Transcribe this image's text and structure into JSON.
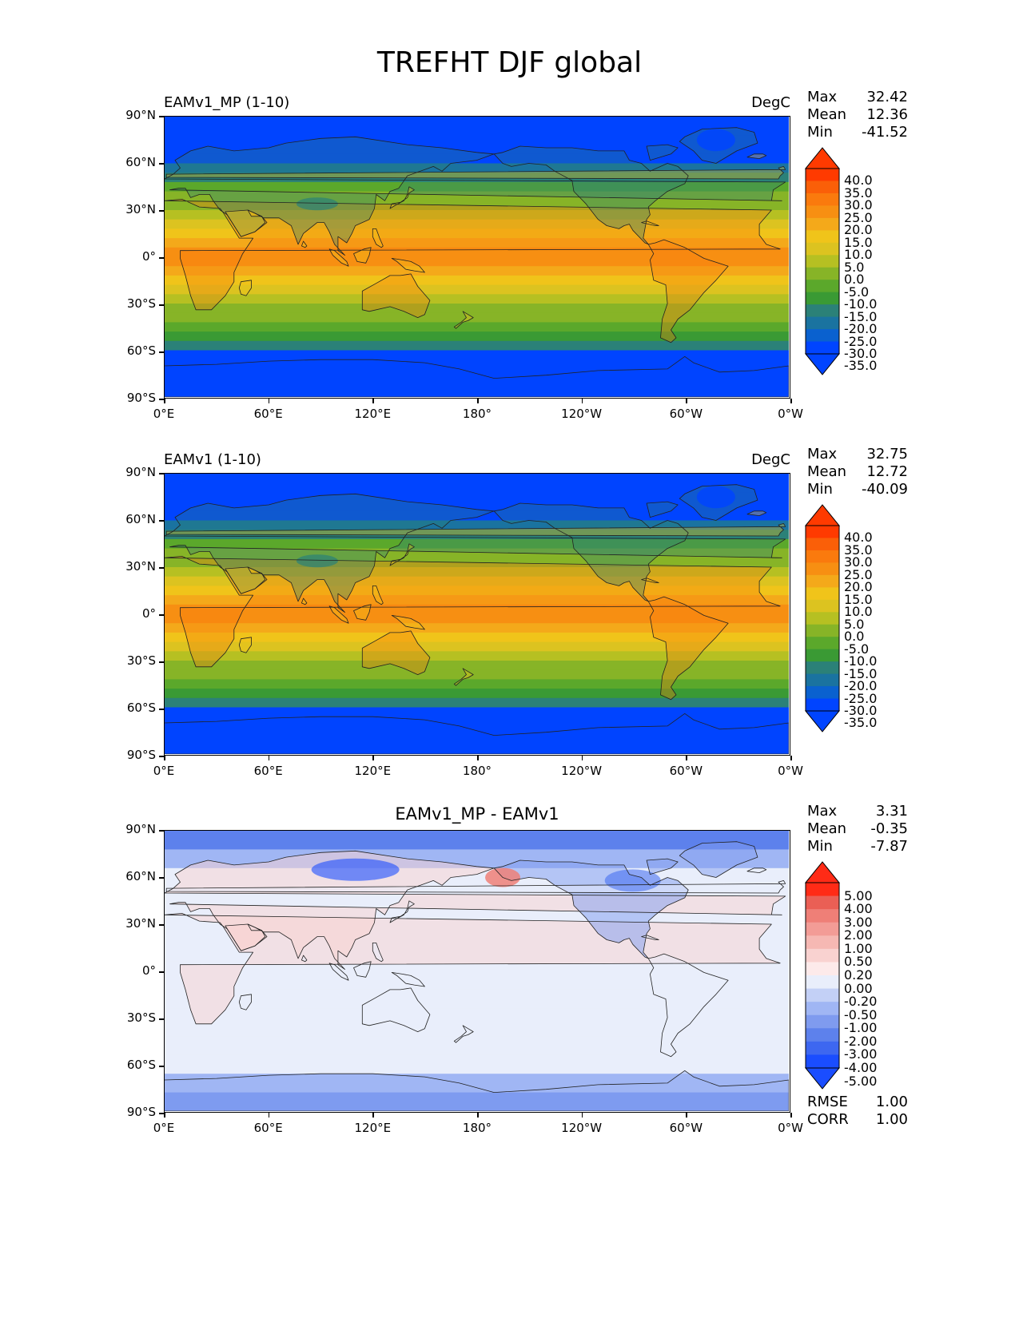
{
  "figure_title": "TREFHT DJF global",
  "x_ticks": [
    "0°E",
    "60°E",
    "120°E",
    "180°",
    "120°W",
    "60°W",
    "0°W"
  ],
  "y_ticks": [
    "90°N",
    "60°N",
    "30°N",
    "0°",
    "30°S",
    "60°S",
    "90°S"
  ],
  "panels": [
    {
      "title": "EAMv1_MP (1-10)",
      "units": "DegC",
      "stats": {
        "max_label": "Max",
        "max": "32.42",
        "mean_label": "Mean",
        "mean": "12.36",
        "min_label": "Min",
        "min": "-41.52"
      },
      "colorbar_labels": [
        "40.0",
        "35.0",
        "30.0",
        "25.0",
        "20.0",
        "15.0",
        "10.0",
        "5.0",
        "0.0",
        "-5.0",
        "-10.0",
        "-15.0",
        "-20.0",
        "-25.0",
        "-30.0",
        "-35.0"
      ]
    },
    {
      "title": "EAMv1 (1-10)",
      "units": "DegC",
      "stats": {
        "max_label": "Max",
        "max": "32.75",
        "mean_label": "Mean",
        "mean": "12.72",
        "min_label": "Min",
        "min": "-40.09"
      },
      "colorbar_labels": [
        "40.0",
        "35.0",
        "30.0",
        "25.0",
        "20.0",
        "15.0",
        "10.0",
        "5.0",
        "0.0",
        "-5.0",
        "-10.0",
        "-15.0",
        "-20.0",
        "-25.0",
        "-30.0",
        "-35.0"
      ]
    },
    {
      "title": "EAMv1_MP - EAMv1",
      "units": "",
      "stats": {
        "max_label": "Max",
        "max": "3.31",
        "mean_label": "Mean",
        "mean": "-0.35",
        "min_label": "Min",
        "min": "-7.87"
      },
      "colorbar_labels": [
        "5.00",
        "4.00",
        "3.00",
        "2.00",
        "1.00",
        "0.50",
        "0.20",
        "0.00",
        "-0.20",
        "-0.50",
        "-1.00",
        "-2.00",
        "-3.00",
        "-4.00",
        "-5.00"
      ],
      "extra_stats": {
        "rmse_label": "RMSE",
        "rmse": "1.00",
        "corr_label": "CORR",
        "corr": "1.00"
      }
    }
  ],
  "colors": {
    "temp_scale": [
      "#0044ff",
      "#0a61cf",
      "#1a73a0",
      "#2b8178",
      "#3a9a34",
      "#5ba82b",
      "#87b427",
      "#b6c022",
      "#dcc320",
      "#f0c41a",
      "#f4a91a",
      "#f78f12",
      "#fa7a0d",
      "#fa5f08",
      "#ff3a00"
    ],
    "diff_scale": [
      "#1a4dff",
      "#3d67f0",
      "#5d81ec",
      "#7f9bef",
      "#a0b6f4",
      "#c3d0f6",
      "#e9eefb",
      "#fdeaea",
      "#f9d2d0",
      "#f6b8b3",
      "#f39c96",
      "#ef7f77",
      "#ea5f55",
      "#ff2b16"
    ]
  }
}
